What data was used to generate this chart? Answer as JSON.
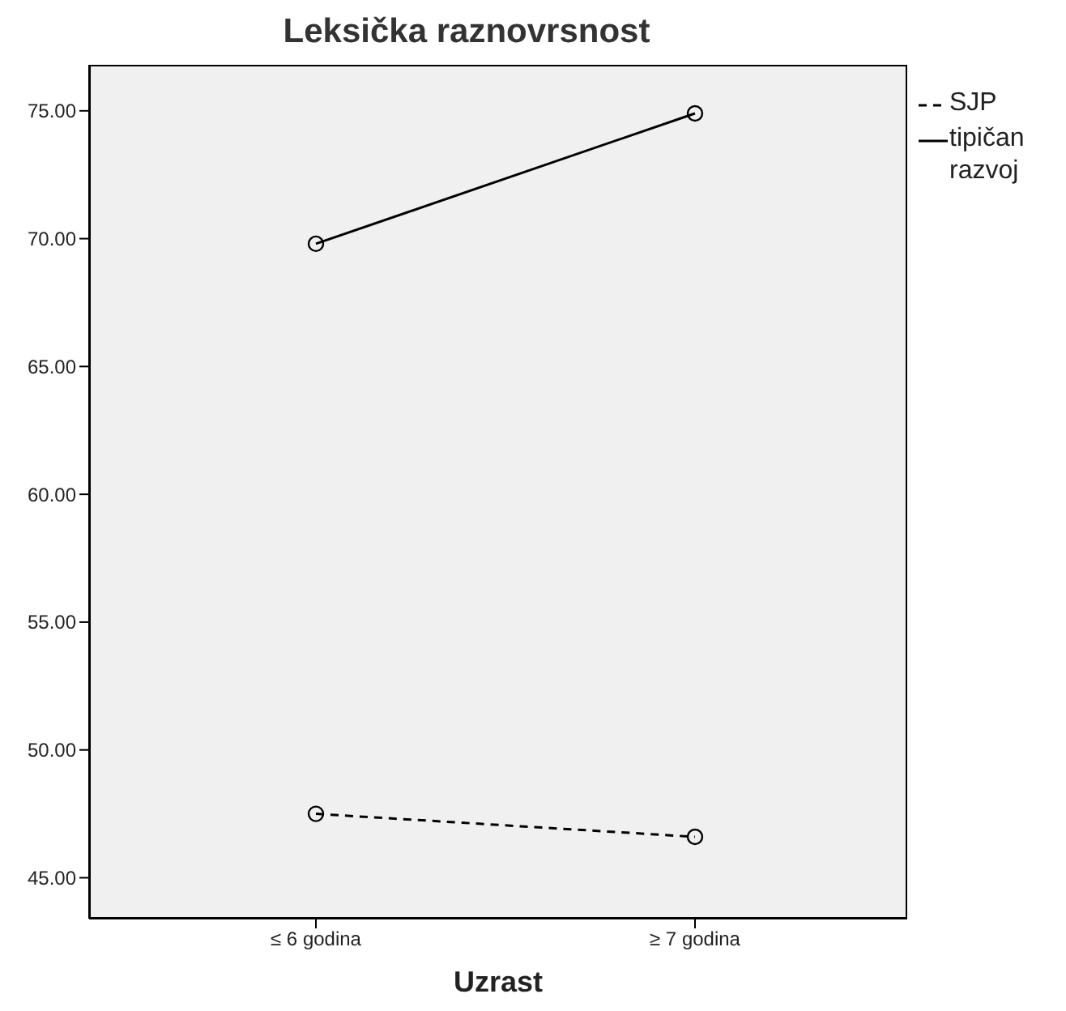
{
  "chart_data": {
    "type": "line",
    "title": "Leksička raznovrsnost",
    "xlabel": "Uzrast",
    "categories": [
      "≤ 6 godina",
      "≥ 7 godina"
    ],
    "series": [
      {
        "name": "SJP",
        "color": "#000000",
        "values": [
          47.5,
          46.6
        ],
        "line_style": "dashed"
      },
      {
        "name": "tipičan razvoj",
        "color": "#000000",
        "values": [
          69.8,
          74.9
        ],
        "line_style": "solid"
      }
    ],
    "ylim": [
      43.4,
      76.8
    ],
    "yticks": [
      {
        "value": 45,
        "label": "45.00"
      },
      {
        "value": 50,
        "label": "50.00"
      },
      {
        "value": 55,
        "label": "55.00"
      },
      {
        "value": 60,
        "label": "60.00"
      },
      {
        "value": 65,
        "label": "65.00"
      },
      {
        "value": 70,
        "label": "70.00"
      },
      {
        "value": 75,
        "label": "75.00"
      }
    ],
    "grid": false,
    "legend": "right",
    "marker": "circle"
  }
}
